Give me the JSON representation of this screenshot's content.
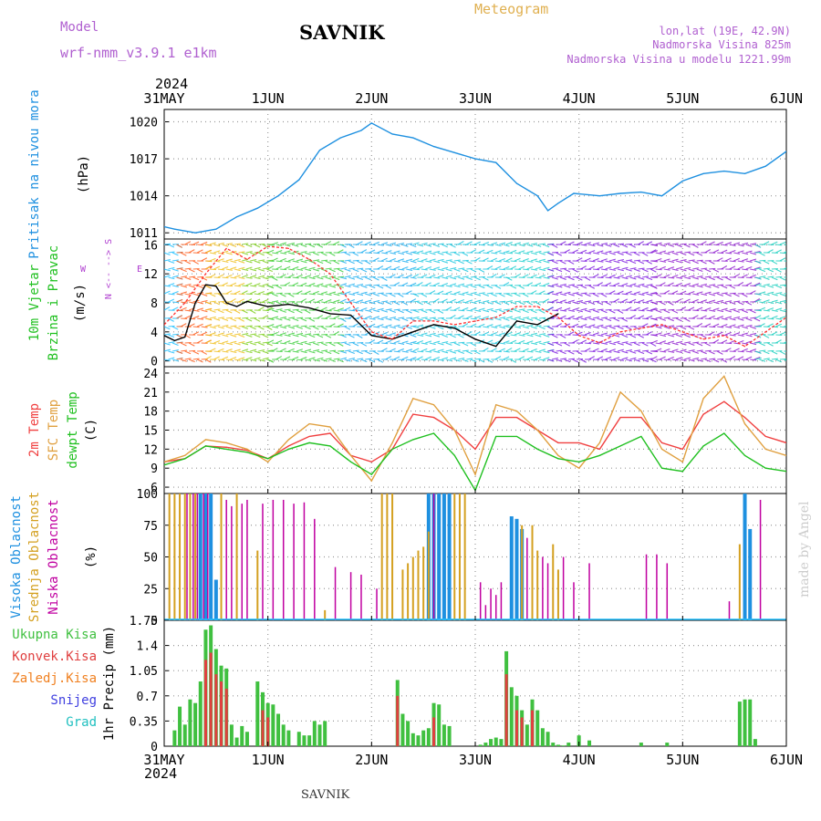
{
  "header": {
    "model_label": "Model",
    "model_name": "wrf-nmm_v3.9.1 e1km",
    "station": "SAVNIK",
    "product": "Meteogram",
    "lonlat": "lon,lat (19E, 42.9N)",
    "elevation": "Nadmorska Visina 825m",
    "model_elevation": "Nadmorska Visina u modelu 1221.99m",
    "footer_station": "SAVNIK",
    "watermark": "made by Angel"
  },
  "time_axis": {
    "year": "2024",
    "ticks": [
      "31MAY",
      "1JUN",
      "2JUN",
      "3JUN",
      "4JUN",
      "5JUN",
      "6JUN"
    ]
  },
  "colors": {
    "pressure": "#1e90e0",
    "wind_speed": "#000000",
    "wind_gust": "#ff3030",
    "t2m": "#f04040",
    "sfc_temp": "#e0a040",
    "dewpoint": "#20c020",
    "cloud_high": "#1e90e0",
    "cloud_mid": "#d4a020",
    "cloud_low": "#c000a0",
    "precip_total": "#40c040",
    "precip_conv": "#e04040",
    "precip_frz": "#f08020",
    "snow": "#4040e0",
    "hail": "#20c0c0"
  },
  "chart_data": [
    {
      "type": "line",
      "panel": "pressure",
      "ylabel_lines": [
        "Pritisak na nivou mora",
        "(hPa)"
      ],
      "yticks": [
        "1020",
        "1017",
        "1014",
        "1011"
      ],
      "ylim": [
        1010.5,
        1021
      ],
      "x_unit": "days since 31MAY 00UTC",
      "series": [
        {
          "x": [
            0,
            0.1,
            0.3,
            0.5,
            0.7,
            0.9,
            1.1,
            1.3,
            1.5,
            1.7,
            1.9,
            2.0,
            2.2,
            2.4,
            2.6,
            2.8,
            3.0,
            3.2,
            3.4,
            3.6,
            3.7,
            3.8,
            3.95,
            4.2,
            4.4,
            4.6,
            4.8,
            5.0,
            5.2,
            5.4,
            5.6,
            5.8,
            6.0
          ],
          "values": [
            1011.5,
            1011.3,
            1011.0,
            1011.3,
            1012.3,
            1013.0,
            1014.0,
            1015.3,
            1017.7,
            1018.7,
            1019.3,
            1019.9,
            1019.0,
            1018.7,
            1018.0,
            1017.5,
            1017.0,
            1016.7,
            1015.0,
            1014.0,
            1012.8,
            1013.4,
            1014.2,
            1014.0,
            1014.2,
            1014.3,
            1014.0,
            1015.2,
            1015.8,
            1016.0,
            1015.8,
            1016.4,
            1017.6
          ]
        }
      ]
    },
    {
      "type": "line",
      "panel": "wind",
      "ylabel_lines": [
        "10m Vjetar",
        "Brzina i Pravac",
        "(m/s)"
      ],
      "yticks": [
        "16",
        "12",
        "8",
        "4",
        "0"
      ],
      "ylim": [
        -0.8,
        16.8
      ],
      "x_unit": "days since 31MAY 00UTC",
      "series": [
        {
          "name": "speed",
          "x": [
            0,
            0.1,
            0.2,
            0.3,
            0.4,
            0.5,
            0.6,
            0.7,
            0.8,
            1.0,
            1.2,
            1.4,
            1.6,
            1.8,
            2.0,
            2.2,
            2.4,
            2.6,
            2.8,
            3.0,
            3.2,
            3.4,
            3.6,
            3.8
          ],
          "values": [
            3.5,
            2.8,
            3.3,
            8.0,
            10.5,
            10.3,
            8.0,
            7.5,
            8.2,
            7.5,
            7.8,
            7.3,
            6.5,
            6.3,
            3.5,
            3.0,
            4.0,
            5.0,
            4.5,
            3.0,
            2.0,
            5.5,
            5.0,
            6.5
          ]
        },
        {
          "name": "gust",
          "x": [
            0,
            0.2,
            0.4,
            0.6,
            0.8,
            1.0,
            1.2,
            1.4,
            1.6,
            1.8,
            2.0,
            2.2,
            2.4,
            2.6,
            2.8,
            3.0,
            3.2,
            3.4,
            3.6,
            3.8,
            4.0,
            4.2,
            4.4,
            4.6,
            4.8,
            5.0,
            5.2,
            5.4,
            5.6,
            5.8,
            6.0
          ],
          "values": [
            5,
            8,
            12,
            15.5,
            14,
            15.8,
            15.5,
            14,
            12,
            8,
            4,
            3,
            5.5,
            5.5,
            5,
            5.5,
            6,
            7.5,
            7.5,
            6,
            3.5,
            2.5,
            4,
            4.5,
            5,
            4,
            3,
            3.5,
            2,
            4,
            6
          ]
        }
      ],
      "direction_glyph": [
        "N",
        "<--",
        "-->",
        "S"
      ],
      "direction_glyph_side": [
        "W",
        "E"
      ]
    },
    {
      "type": "line",
      "panel": "temperature",
      "ylabel_lines": [
        "2m Temp",
        "SFC Temp",
        "dewpt Temp",
        "(C)"
      ],
      "yticks": [
        "24",
        "21",
        "18",
        "15",
        "12",
        "9",
        "6"
      ],
      "ylim": [
        5,
        25
      ],
      "x_unit": "days since 31MAY 00UTC",
      "series": [
        {
          "name": "2m Temp",
          "x": [
            0,
            0.2,
            0.4,
            0.6,
            0.8,
            1.0,
            1.2,
            1.4,
            1.6,
            1.8,
            2.0,
            2.2,
            2.4,
            2.6,
            2.8,
            3.0,
            3.2,
            3.4,
            3.6,
            3.8,
            4.0,
            4.2,
            4.4,
            4.6,
            4.8,
            5.0,
            5.2,
            5.4,
            5.6,
            5.8,
            6.0
          ],
          "values": [
            10,
            10.5,
            12.5,
            12.3,
            11.8,
            10.5,
            12.5,
            14.0,
            14.5,
            11.0,
            10.0,
            12.0,
            17.5,
            17.0,
            15.0,
            12.0,
            17.0,
            17.0,
            15.0,
            13.0,
            13.0,
            12.0,
            17.0,
            17.0,
            13.0,
            12.0,
            17.5,
            19.5,
            17.0,
            14.0,
            13.0
          ]
        },
        {
          "name": "SFC Temp",
          "x": [
            0,
            0.2,
            0.4,
            0.6,
            0.8,
            1.0,
            1.2,
            1.4,
            1.6,
            1.8,
            2.0,
            2.2,
            2.4,
            2.6,
            2.8,
            3.0,
            3.2,
            3.4,
            3.6,
            3.8,
            4.0,
            4.2,
            4.4,
            4.6,
            4.8,
            5.0,
            5.2,
            5.4,
            5.6,
            5.8,
            6.0
          ],
          "values": [
            10,
            11,
            13.5,
            13.0,
            12.0,
            10.0,
            13.5,
            16.0,
            15.5,
            11.0,
            7.0,
            13.0,
            20.0,
            19.0,
            15.0,
            8.0,
            19.0,
            18.0,
            15.0,
            11.0,
            9.0,
            13.0,
            21.0,
            18.0,
            12.0,
            10.0,
            20.0,
            23.5,
            16.0,
            12.0,
            11.0
          ]
        },
        {
          "name": "dewpt Temp",
          "x": [
            0,
            0.2,
            0.4,
            0.6,
            0.8,
            1.0,
            1.2,
            1.4,
            1.6,
            1.8,
            2.0,
            2.2,
            2.4,
            2.6,
            2.8,
            3.0,
            3.2,
            3.4,
            3.6,
            3.8,
            4.0,
            4.2,
            4.4,
            4.6,
            4.8,
            5.0,
            5.2,
            5.4,
            5.6,
            5.8,
            6.0
          ],
          "values": [
            9.5,
            10.5,
            12.5,
            12.0,
            11.5,
            10.5,
            12.0,
            13.0,
            12.5,
            10.0,
            8.0,
            12.0,
            13.5,
            14.5,
            11.0,
            5.5,
            14.0,
            14.0,
            12.0,
            10.5,
            10.0,
            11.0,
            12.5,
            14.0,
            9.0,
            8.5,
            12.5,
            14.5,
            11.0,
            9.0,
            8.5
          ]
        }
      ]
    },
    {
      "type": "bar",
      "panel": "clouds",
      "ylabel_lines": [
        "Visoka Oblacnost",
        "Srednja Oblacnost",
        "Niska Oblacnost",
        "(%)"
      ],
      "yticks": [
        "100",
        "75",
        "50",
        "25",
        "0"
      ],
      "ylim": [
        0,
        100
      ],
      "x_unit": "days since 31MAY 00UTC",
      "series": [
        {
          "name": "Visoka Oblacnost",
          "x": [
            0.35,
            0.4,
            0.45,
            0.5,
            2.55,
            2.6,
            2.65,
            2.7,
            2.75,
            3.35,
            3.4,
            3.45,
            5.6,
            5.65
          ],
          "values": [
            100,
            100,
            100,
            32,
            100,
            100,
            100,
            100,
            100,
            82,
            80,
            72,
            100,
            72
          ]
        },
        {
          "name": "Srednja Oblacnost",
          "x": [
            0.05,
            0.1,
            0.15,
            0.2,
            0.25,
            0.3,
            0.55,
            0.7,
            0.9,
            1.55,
            2.1,
            2.15,
            2.2,
            2.3,
            2.35,
            2.4,
            2.45,
            2.5,
            2.55,
            2.8,
            2.85,
            2.9,
            3.45,
            3.55,
            3.6,
            3.75,
            3.8,
            5.55
          ],
          "values": [
            100,
            100,
            100,
            100,
            100,
            100,
            100,
            100,
            55,
            8,
            100,
            100,
            100,
            40,
            45,
            50,
            55,
            58,
            70,
            100,
            100,
            100,
            75,
            75,
            55,
            60,
            40,
            60
          ]
        },
        {
          "name": "Niska Oblacnost",
          "x": [
            0.22,
            0.28,
            0.32,
            0.38,
            0.42,
            0.6,
            0.65,
            0.75,
            0.8,
            0.95,
            1.05,
            1.15,
            1.25,
            1.35,
            1.45,
            1.65,
            1.8,
            1.9,
            2.05,
            2.6,
            3.05,
            3.1,
            3.15,
            3.2,
            3.25,
            3.5,
            3.65,
            3.7,
            3.85,
            3.95,
            4.1,
            4.65,
            4.75,
            4.85,
            5.45,
            5.75
          ],
          "values": [
            100,
            100,
            100,
            100,
            100,
            95,
            90,
            92,
            95,
            92,
            95,
            95,
            92,
            93,
            80,
            42,
            38,
            36,
            25,
            100,
            30,
            12,
            25,
            20,
            30,
            65,
            50,
            45,
            50,
            30,
            45,
            52,
            52,
            45,
            15,
            95
          ]
        }
      ]
    },
    {
      "type": "bar",
      "panel": "precipitation",
      "ylabel_lines": [
        "Ukupna Kisa",
        "Konvek.Kisa",
        "Zaledj.Kisa",
        "Snijeg",
        "Grad",
        "1hr Precip (mm)"
      ],
      "yticks": [
        "1.75",
        "1.4",
        "1.05",
        "0.7",
        "0.35",
        "0"
      ],
      "ylim": [
        0,
        1.75
      ],
      "x_unit": "days since 31MAY 00UTC",
      "series": [
        {
          "name": "Ukupna Kisa",
          "x": [
            0.1,
            0.15,
            0.2,
            0.25,
            0.3,
            0.35,
            0.4,
            0.45,
            0.5,
            0.55,
            0.6,
            0.65,
            0.7,
            0.75,
            0.8,
            0.9,
            0.95,
            1.0,
            1.05,
            1.1,
            1.15,
            1.2,
            1.3,
            1.35,
            1.4,
            1.45,
            1.5,
            1.55,
            2.25,
            2.3,
            2.35,
            2.4,
            2.45,
            2.5,
            2.55,
            2.6,
            2.65,
            2.7,
            2.75,
            3.05,
            3.1,
            3.15,
            3.2,
            3.25,
            3.3,
            3.35,
            3.4,
            3.45,
            3.5,
            3.55,
            3.6,
            3.65,
            3.7,
            3.75,
            3.8,
            3.85,
            3.9,
            4.0,
            4.1,
            4.6,
            4.85,
            5.55,
            5.6,
            5.65,
            5.7
          ],
          "values": [
            0.22,
            0.55,
            0.3,
            0.65,
            0.6,
            0.9,
            1.62,
            1.68,
            1.35,
            1.12,
            1.08,
            0.3,
            0.12,
            0.28,
            0.2,
            0.9,
            0.75,
            0.6,
            0.58,
            0.45,
            0.3,
            0.22,
            0.2,
            0.15,
            0.15,
            0.35,
            0.3,
            0.35,
            0.92,
            0.45,
            0.35,
            0.18,
            0.15,
            0.22,
            0.25,
            0.6,
            0.58,
            0.3,
            0.28,
            0.02,
            0.05,
            0.1,
            0.12,
            0.1,
            1.32,
            0.82,
            0.7,
            0.5,
            0.3,
            0.65,
            0.5,
            0.25,
            0.2,
            0.05,
            0.02,
            0.01,
            0.05,
            0.15,
            0.08,
            0.05,
            0.05,
            0.62,
            0.65,
            0.65,
            0.1
          ]
        },
        {
          "name": "Konvek.Kisa",
          "x": [
            0.4,
            0.45,
            0.5,
            0.55,
            0.6,
            0.95,
            1.0,
            2.25,
            2.6,
            3.3,
            3.4,
            3.45,
            3.55
          ],
          "values": [
            1.2,
            1.3,
            1.0,
            0.9,
            0.8,
            0.5,
            0.4,
            0.7,
            0.4,
            1.0,
            0.5,
            0.4,
            0.5
          ]
        }
      ]
    }
  ]
}
